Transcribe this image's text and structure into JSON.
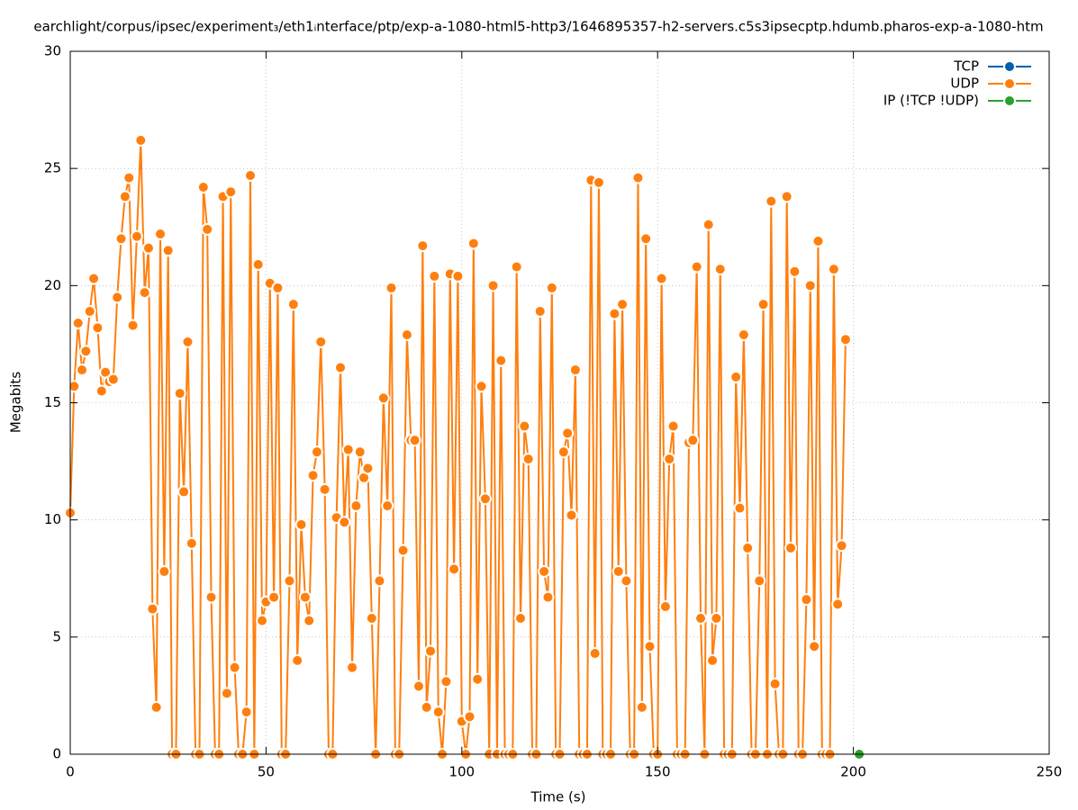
{
  "chart_data": {
    "type": "line",
    "title": "earchlight/corpus/ipsec/experiment₃/eth1ᵢnterface/ptp/exp-a-1080-html5-http3/1646895357-h2-servers.c5s3ipsecptp.hdumb.pharos-exp-a-1080-htm",
    "x_label": "Time (s)",
    "y_label": "Megabits",
    "xlim": [
      0,
      250
    ],
    "xticks": [
      0,
      50,
      100,
      150,
      200,
      250
    ],
    "ylim": [
      0,
      30
    ],
    "yticks": [
      0,
      5,
      10,
      15,
      20,
      25,
      30
    ],
    "grid": true,
    "legend": "top-right",
    "series": [
      {
        "name": "TCP",
        "color": "#0060ad",
        "x": [],
        "values": []
      },
      {
        "name": "UDP",
        "color": "#ff7f0e",
        "x": [
          0,
          1,
          2,
          3,
          4,
          5,
          6,
          7,
          8,
          9,
          10,
          11,
          12,
          13,
          14,
          15,
          16,
          17,
          18,
          19,
          20,
          21,
          22,
          23,
          24,
          25,
          26,
          27,
          28,
          29,
          30,
          31,
          32,
          33,
          34,
          35,
          36,
          37,
          38,
          39,
          40,
          41,
          42,
          43,
          44,
          45,
          46,
          47,
          48,
          49,
          50,
          51,
          52,
          53,
          54,
          55,
          56,
          57,
          58,
          59,
          60,
          61,
          62,
          63,
          64,
          65,
          66,
          67,
          68,
          69,
          70,
          71,
          72,
          73,
          74,
          75,
          76,
          77,
          78,
          79,
          80,
          81,
          82,
          83,
          84,
          85,
          86,
          87,
          88,
          89,
          90,
          91,
          92,
          93,
          94,
          95,
          96,
          97,
          98,
          99,
          100,
          101,
          102,
          103,
          104,
          105,
          106,
          107,
          108,
          109,
          110,
          111,
          112,
          113,
          114,
          115,
          116,
          117,
          118,
          119,
          120,
          121,
          122,
          123,
          124,
          125,
          126,
          127,
          128,
          129,
          130,
          131,
          132,
          133,
          134,
          135,
          136,
          137,
          138,
          139,
          140,
          141,
          142,
          143,
          144,
          145,
          146,
          147,
          148,
          149,
          150,
          151,
          152,
          153,
          154,
          155,
          156,
          157,
          158,
          159,
          160,
          161,
          162,
          163,
          164,
          165,
          166,
          167,
          168,
          169,
          170,
          171,
          172,
          173,
          174,
          175,
          176,
          177,
          178,
          179,
          180,
          181,
          182,
          183,
          184,
          185,
          186,
          187,
          188,
          189,
          190,
          191,
          192,
          193,
          194,
          195,
          196,
          197,
          198
        ],
        "values": [
          10.3,
          15.7,
          18.4,
          16.4,
          17.2,
          18.9,
          20.3,
          18.2,
          15.5,
          16.3,
          15.9,
          16.0,
          19.5,
          22.0,
          23.8,
          24.6,
          18.3,
          22.1,
          26.2,
          19.7,
          21.6,
          6.2,
          2.0,
          22.2,
          7.8,
          21.5,
          0,
          0,
          15.4,
          11.2,
          17.6,
          9.0,
          0,
          0,
          24.2,
          22.4,
          6.7,
          0,
          0,
          23.8,
          2.6,
          24.0,
          3.7,
          0,
          0,
          1.8,
          24.7,
          0,
          20.9,
          5.7,
          6.5,
          20.1,
          6.7,
          19.9,
          0,
          0,
          7.4,
          19.2,
          4.0,
          9.8,
          6.7,
          5.7,
          11.9,
          12.9,
          17.6,
          11.3,
          0,
          0,
          10.1,
          16.5,
          9.9,
          13.0,
          3.7,
          10.6,
          12.9,
          11.8,
          12.2,
          5.8,
          0,
          7.4,
          15.2,
          10.6,
          19.9,
          0,
          0,
          8.7,
          17.9,
          13.4,
          13.4,
          2.9,
          21.7,
          2.0,
          4.4,
          20.4,
          1.8,
          0,
          3.1,
          20.5,
          7.9,
          20.4,
          1.4,
          0,
          1.6,
          21.8,
          3.2,
          15.7,
          10.9,
          0,
          20.0,
          0,
          16.8,
          0,
          0,
          0,
          20.8,
          5.8,
          14.0,
          12.6,
          0,
          0,
          18.9,
          7.8,
          6.7,
          19.9,
          0,
          0,
          12.9,
          13.7,
          10.2,
          16.4,
          0,
          0,
          0,
          24.5,
          4.3,
          24.4,
          0,
          0,
          0,
          18.8,
          7.8,
          19.2,
          7.4,
          0,
          0,
          24.6,
          2.0,
          22.0,
          4.6,
          0,
          0,
          20.3,
          6.3,
          12.6,
          14.0,
          0,
          0,
          0,
          13.3,
          13.4,
          20.8,
          5.8,
          0,
          22.6,
          4.0,
          5.8,
          20.7,
          0,
          0,
          0,
          16.1,
          10.5,
          17.9,
          8.8,
          0,
          0,
          7.4,
          19.2,
          0,
          23.6,
          3.0,
          0,
          0,
          23.8,
          8.8,
          20.6,
          0,
          0,
          6.6,
          20.0,
          4.6,
          21.9,
          0,
          0,
          0,
          20.7,
          6.4,
          8.9,
          17.7
        ]
      },
      {
        "name": "IP (!TCP  !UDP)",
        "color": "#2ca02c",
        "x": [
          201.5
        ],
        "values": [
          0
        ]
      }
    ]
  }
}
